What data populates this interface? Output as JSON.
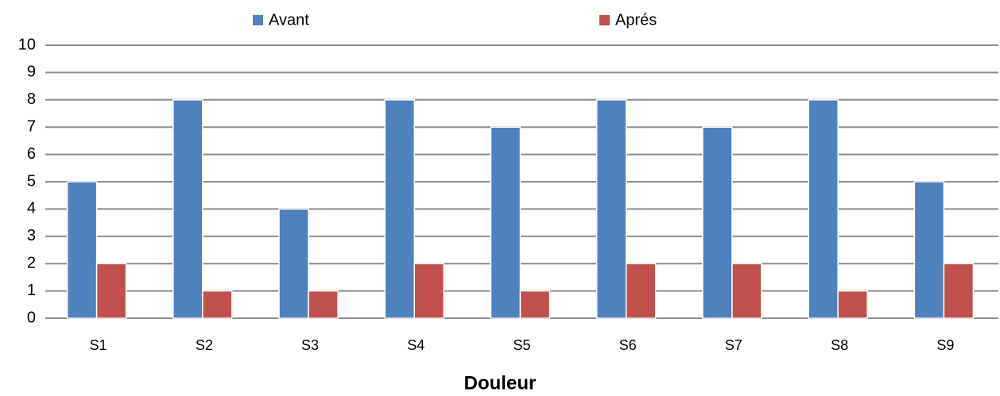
{
  "chart_data": {
    "type": "bar",
    "x_label": "Douleur",
    "categories": [
      "S1",
      "S2",
      "S3",
      "S4",
      "S5",
      "S6",
      "S7",
      "S8",
      "S9"
    ],
    "series": [
      {
        "name": "Avant",
        "color": "#4f81bd",
        "values": [
          5,
          8,
          4,
          8,
          7,
          8,
          7,
          8,
          5
        ]
      },
      {
        "name": "Aprés",
        "color": "#c0504d",
        "values": [
          2,
          1,
          1,
          2,
          1,
          2,
          2,
          1,
          2
        ]
      }
    ],
    "ylim": [
      0,
      10
    ],
    "yticks": [
      0,
      1,
      2,
      3,
      4,
      5,
      6,
      7,
      8,
      9,
      10
    ],
    "grid": true,
    "legend": "top"
  }
}
